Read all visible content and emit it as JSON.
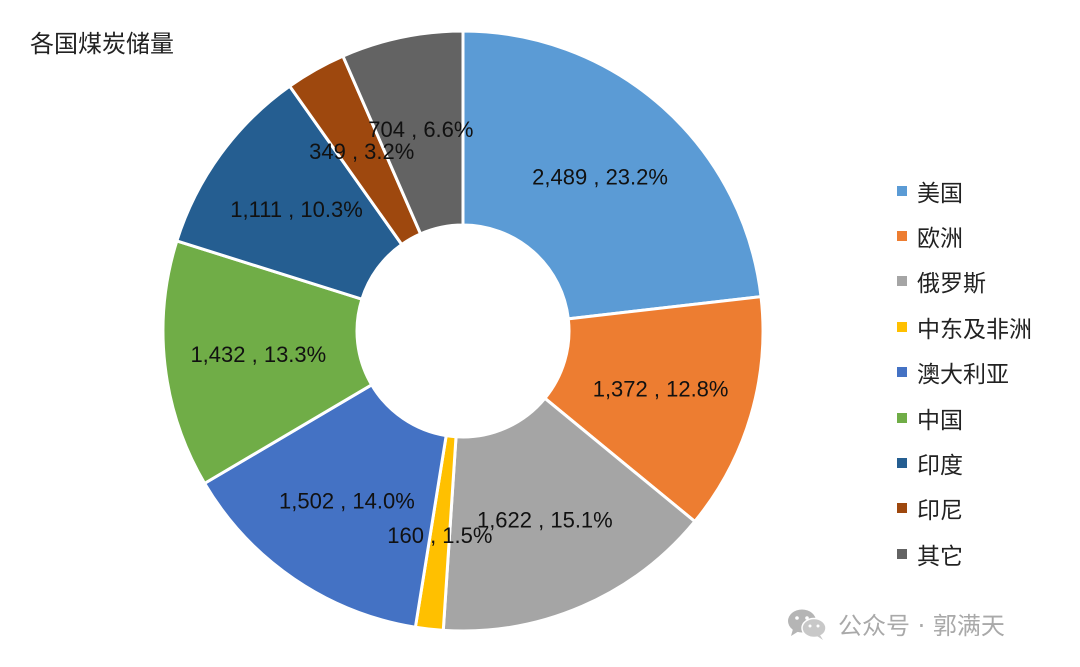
{
  "chart_data": {
    "type": "pie",
    "title": "各国煤炭储量",
    "donut": true,
    "legend_position": "right",
    "slices": [
      {
        "name": "美国",
        "value": 2489,
        "value_label": "2,489",
        "percent": "23.2%",
        "color": "#5B9BD5"
      },
      {
        "name": "欧洲",
        "value": 1372,
        "value_label": "1,372",
        "percent": "12.8%",
        "color": "#ED7D31"
      },
      {
        "name": "俄罗斯",
        "value": 1622,
        "value_label": "1,622",
        "percent": "15.1%",
        "color": "#A5A5A5"
      },
      {
        "name": "中东及非洲",
        "value": 160,
        "value_label": "160",
        "percent": "1.5%",
        "color": "#FFC000"
      },
      {
        "name": "澳大利亚",
        "value": 1502,
        "value_label": "1,502",
        "percent": "14.0%",
        "color": "#4472C4"
      },
      {
        "name": "中国",
        "value": 1432,
        "value_label": "1,432",
        "percent": "13.3%",
        "color": "#70AD47"
      },
      {
        "name": "印度",
        "value": 1111,
        "value_label": "1,111",
        "percent": "10.3%",
        "color": "#255E91"
      },
      {
        "name": "印尼",
        "value": 349,
        "value_label": "349",
        "percent": "3.2%",
        "color": "#9E480E"
      },
      {
        "name": "其它",
        "value": 704,
        "value_label": "704",
        "percent": "6.6%",
        "color": "#636363"
      }
    ]
  },
  "watermark": {
    "text": "公众号 · 郭满天",
    "icon": "wechat-icon"
  }
}
